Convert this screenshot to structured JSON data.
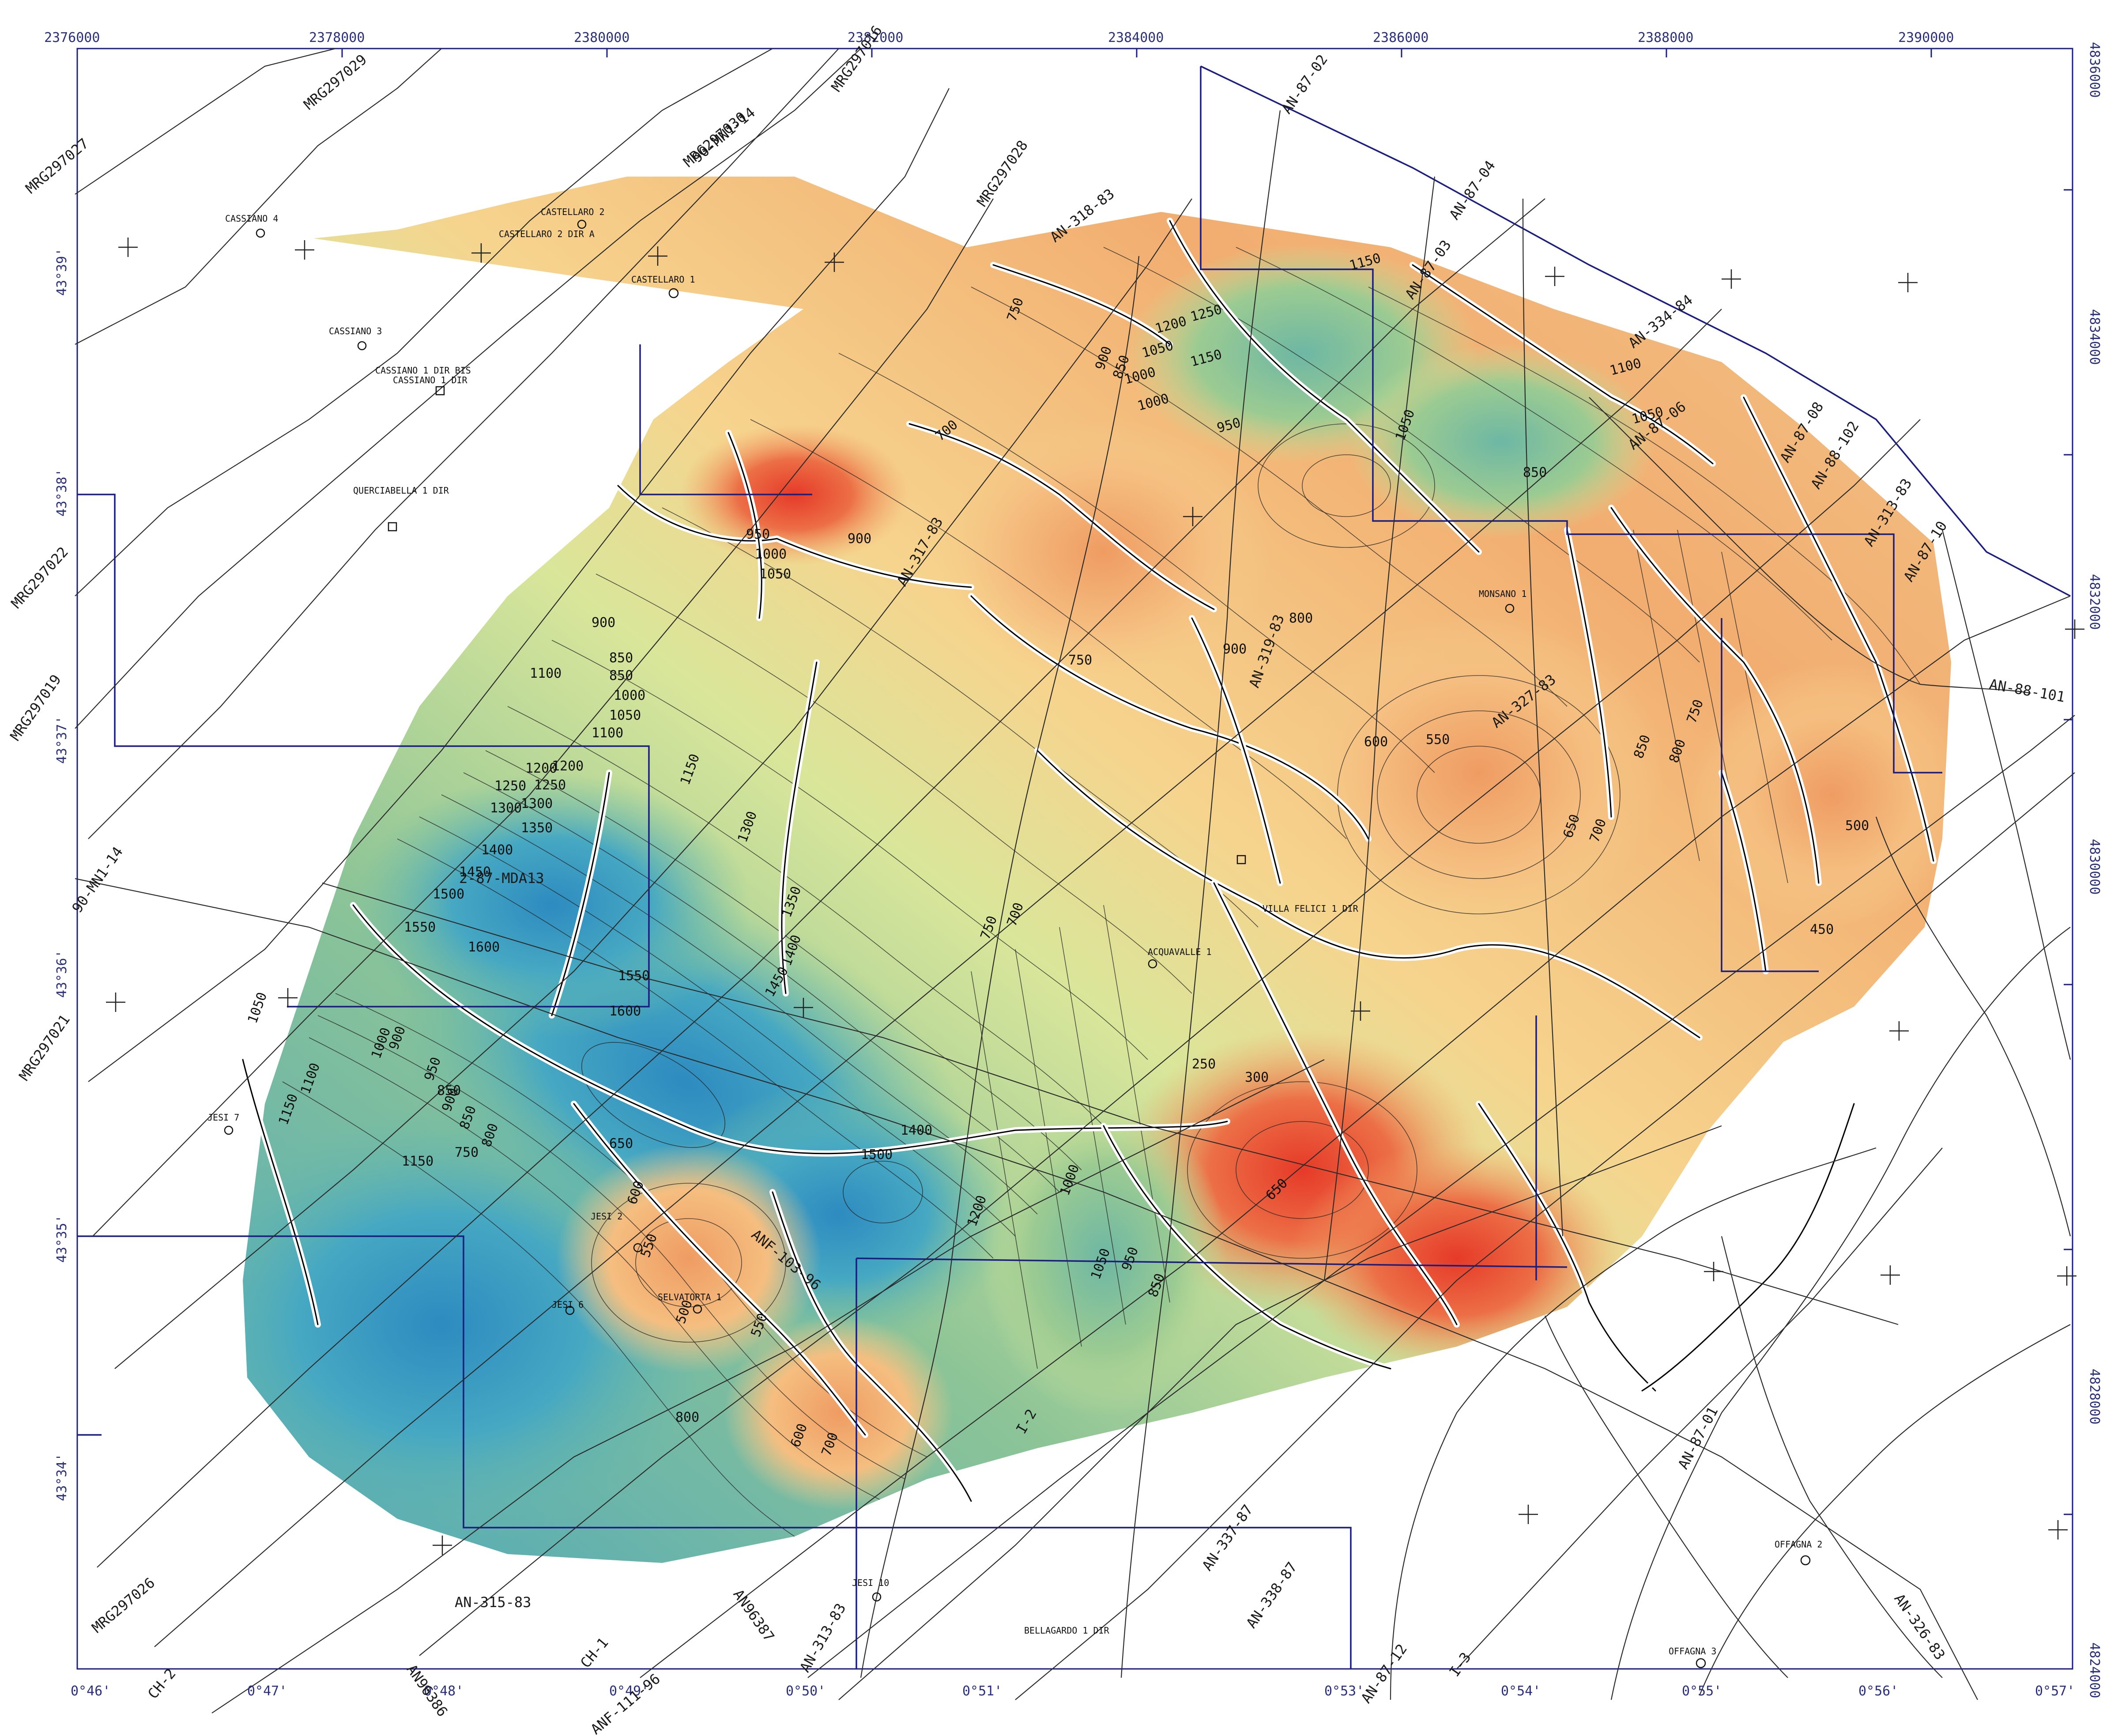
{
  "map": {
    "colors": {
      "deep_blue": "#2f8fbf",
      "mid_blue": "#4aa9bf",
      "teal": "#6dbaa6",
      "green": "#a9cf8e",
      "light_green": "#d7e59a",
      "yellow": "#f2ee9e",
      "light_orange": "#f6c886",
      "orange": "#f0a468",
      "red_orange": "#ea6a44",
      "red": "#e8402e",
      "frame": "#1b1e80"
    },
    "x_ticks": [
      {
        "label": "2376000"
      },
      {
        "label": "2378000"
      },
      {
        "label": "2380000"
      },
      {
        "label": "2382000"
      },
      {
        "label": "2384000"
      },
      {
        "label": "2386000"
      },
      {
        "label": "2388000"
      },
      {
        "label": "2390000"
      }
    ],
    "y_ticks": [
      {
        "label": "4836000"
      },
      {
        "label": "4834000"
      },
      {
        "label": "4832000"
      },
      {
        "label": "4830000"
      },
      {
        "label": "4828000"
      },
      {
        "label": "4824000"
      }
    ],
    "lon_ticks": [
      {
        "label": "0°46'"
      },
      {
        "label": "0°47'"
      },
      {
        "label": "0°48'"
      },
      {
        "label": "0°49'"
      },
      {
        "label": "0°50'"
      },
      {
        "label": "0°51'"
      },
      {
        "label": "0°53'"
      },
      {
        "label": "0°54'"
      },
      {
        "label": "0°55'"
      },
      {
        "label": "0°56'"
      },
      {
        "label": "0°57'"
      }
    ],
    "lat_ticks": [
      {
        "label": "43°39'"
      },
      {
        "label": "43°38'"
      },
      {
        "label": "43°37'"
      },
      {
        "label": "43°36'"
      },
      {
        "label": "43°35'"
      },
      {
        "label": "43°34'"
      }
    ],
    "wells": [
      {
        "label": "CASSIANO 4"
      },
      {
        "label": "CASTELLARO 2"
      },
      {
        "label": "CASTELLARO 2 DIR A"
      },
      {
        "label": "CASTELLARO 1"
      },
      {
        "label": "CASSIANO 3"
      },
      {
        "label": "CASSIANO 1 DIR BIS"
      },
      {
        "label": "CASSIANO 1 DIR"
      },
      {
        "label": "QUERCIABELLA 1 DIR"
      },
      {
        "label": "MONSANO 1"
      },
      {
        "label": "VILLA FELICI 1 DIR"
      },
      {
        "label": "ACQUAVALLE 1"
      },
      {
        "label": "JESI 7"
      },
      {
        "label": "JESI 2"
      },
      {
        "label": "JESI 6"
      },
      {
        "label": "SELVATORTA 1"
      },
      {
        "label": "JESI 10"
      },
      {
        "label": "BELLAGARDO 1 DIR"
      },
      {
        "label": "OFFAGNA 2"
      },
      {
        "label": "OFFAGNA 3"
      }
    ],
    "seismic_lines": [
      {
        "label": "MRG297027"
      },
      {
        "label": "MRG297029"
      },
      {
        "label": "MRG297022"
      },
      {
        "label": "MRG297030"
      },
      {
        "label": "MRG297016"
      },
      {
        "label": "MRG297021"
      },
      {
        "label": "MRG297028"
      },
      {
        "label": "MRG297019"
      },
      {
        "label": "MRG297026"
      },
      {
        "label": "AN-318-83"
      },
      {
        "label": "AN-87-02"
      },
      {
        "label": "AN-87-04"
      },
      {
        "label": "AN-87-03"
      },
      {
        "label": "AN-334-84"
      },
      {
        "label": "AN-87-06"
      },
      {
        "label": "AN-87-08"
      },
      {
        "label": "AN-88-102"
      },
      {
        "label": "AN-313-83"
      },
      {
        "label": "AN-87-10"
      },
      {
        "label": "AN-88-101"
      },
      {
        "label": "AN-87-12"
      },
      {
        "label": "AN-327-83"
      },
      {
        "label": "AN-326-83"
      },
      {
        "label": "AN-319-83"
      },
      {
        "label": "AN-317-83"
      },
      {
        "label": "AN-87-01"
      },
      {
        "label": "AN-315-83"
      },
      {
        "label": "AN96386"
      },
      {
        "label": "AN96387"
      },
      {
        "label": "AN-313-83"
      },
      {
        "label": "AN-337-87"
      },
      {
        "label": "AN-338-87"
      },
      {
        "label": "CH-1"
      },
      {
        "label": "CH-2"
      },
      {
        "label": "ANF-111-96"
      },
      {
        "label": "ANF-103-96"
      },
      {
        "label": "2-87-MDA13"
      },
      {
        "label": "90-MN1-14"
      },
      {
        "label": "90-MN1-14"
      },
      {
        "label": "I-2"
      },
      {
        "label": "I-3"
      }
    ],
    "contour_labels": [
      "1150",
      "1200",
      "1250",
      "1150",
      "1050",
      "1000",
      "900",
      "850",
      "750",
      "700",
      "950",
      "1000",
      "1050",
      "900",
      "850",
      "1100",
      "1050",
      "850",
      "800",
      "750",
      "850",
      "900",
      "1000",
      "1050",
      "1100",
      "1150",
      "1200",
      "1250",
      "1300",
      "1350",
      "1400",
      "1450",
      "1500",
      "1550",
      "1600",
      "1300",
      "1350",
      "1400",
      "1450",
      "1550",
      "1600",
      "1500",
      "1400",
      "1200",
      "1000",
      "1050",
      "950",
      "850",
      "750",
      "650",
      "600",
      "550",
      "500",
      "450",
      "550",
      "600",
      "650",
      "700",
      "750",
      "800",
      "850",
      "900",
      "950",
      "1000",
      "1050",
      "1100",
      "1150",
      "1200",
      "1250",
      "1300",
      "650",
      "600",
      "550",
      "500",
      "700",
      "800",
      "850",
      "900",
      "250",
      "300",
      "1150",
      "1100",
      "1050",
      "1000",
      "950",
      "900",
      "850",
      "800",
      "750",
      "700"
    ]
  }
}
